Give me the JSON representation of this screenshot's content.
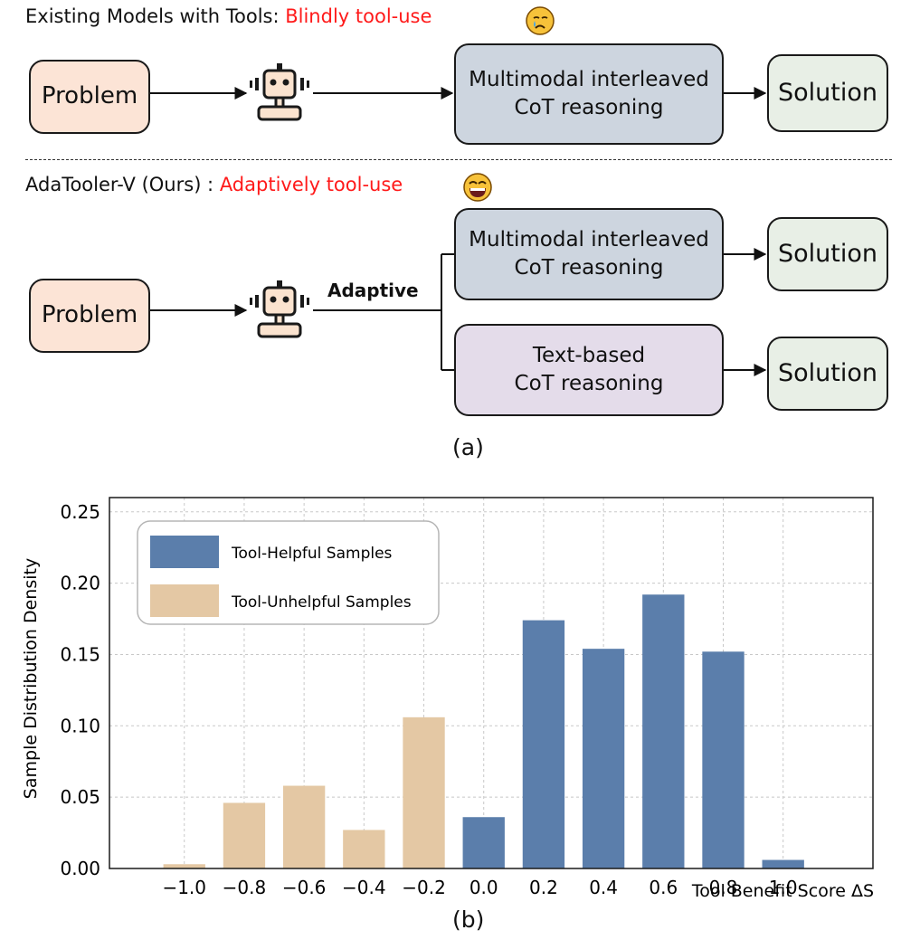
{
  "panel_a": {
    "existing": {
      "title_prefix": "Existing Models with Tools: ",
      "title_highlight": "Blindly tool-use",
      "emoji_icon": "crying-face-icon",
      "problem": "Problem",
      "reasoning": "Multimodal interleaved\nCoT reasoning",
      "solution": "Solution"
    },
    "ours": {
      "title_prefix": "AdaTooler-V (Ours) : ",
      "title_highlight": "Adaptively tool-use",
      "emoji_icon": "grinning-face-icon",
      "problem": "Problem",
      "adaptive_label": "Adaptive",
      "reasoning_mm": "Multimodal interleaved\nCoT reasoning",
      "reasoning_text": "Text-based\nCoT reasoning",
      "solution_1": "Solution",
      "solution_2": "Solution"
    },
    "robot_icon": "robot-icon",
    "caption": "(a)"
  },
  "panel_b": {
    "caption": "(b)"
  },
  "colors": {
    "helpful": "#5b7eab",
    "unhelpful": "#e4c8a4",
    "highlight": "#ff1a1a",
    "problem_fill": "#fce4d6",
    "mm_fill": "#cdd5df",
    "text_fill": "#e4dcea",
    "solution_fill": "#e8efe6"
  },
  "chart_data": {
    "type": "bar",
    "title": "",
    "xlabel": "Tool Benefit Score ΔS",
    "ylabel": "Sample Distribution Density",
    "categories": [
      "−1.0",
      "−0.8",
      "−0.6",
      "−0.4",
      "−0.2",
      "0.0",
      "0.2",
      "0.4",
      "0.6",
      "0.8",
      "1.0"
    ],
    "x": [
      -1.0,
      -0.8,
      -0.6,
      -0.4,
      -0.2,
      0.0,
      0.2,
      0.4,
      0.6,
      0.8,
      1.0
    ],
    "ylim": [
      0,
      0.26
    ],
    "yticks": [
      0.0,
      0.05,
      0.1,
      0.15,
      0.2,
      0.25
    ],
    "ytick_labels": [
      "0.00",
      "0.05",
      "0.10",
      "0.15",
      "0.20",
      "0.25"
    ],
    "grid": true,
    "legend_position": "top-left",
    "series": [
      {
        "name": "Tool-Helpful Samples",
        "color": "#5b7eab",
        "values": [
          null,
          null,
          null,
          null,
          null,
          0.036,
          0.174,
          0.154,
          0.192,
          0.152,
          0.006
        ]
      },
      {
        "name": "Tool-Unhelpful Samples",
        "color": "#e4c8a4",
        "values": [
          0.003,
          0.046,
          0.058,
          0.027,
          0.106,
          null,
          null,
          null,
          null,
          null,
          null
        ]
      }
    ]
  }
}
